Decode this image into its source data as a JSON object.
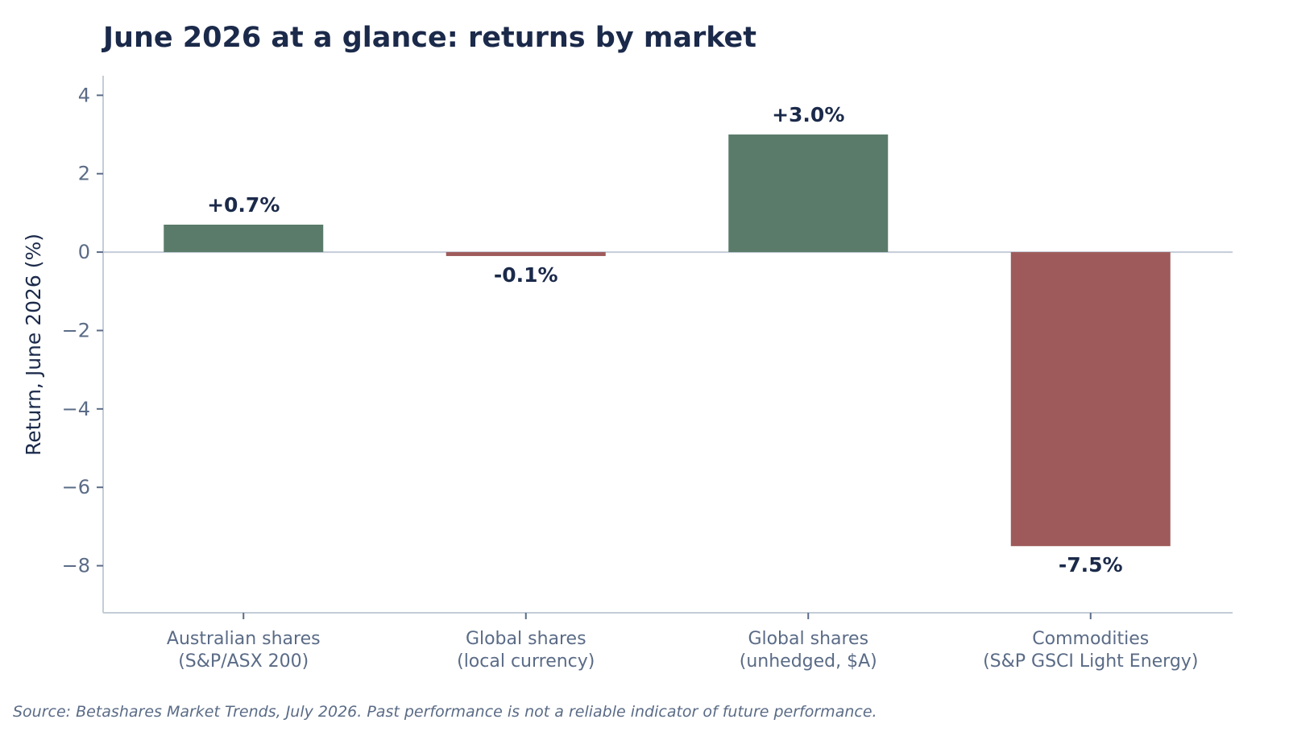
{
  "colors": {
    "title": "#1b2a4a",
    "axis": "#c4ccd8",
    "tick_text": "#5a6b86",
    "label_text": "#1b2a4a",
    "positive_bar": "#5a7b6a",
    "negative_bar": "#9e5a5a",
    "zero_line": "#c4ccd8"
  },
  "chart_data": {
    "type": "bar",
    "title": "June 2026 at a glance: returns by market",
    "xlabel": "",
    "ylabel": "Return, June 2026 (%)",
    "ylim": [
      -9.2,
      4.5
    ],
    "yticks": [
      4,
      2,
      0,
      -2,
      -4,
      -6,
      -8
    ],
    "ytick_labels": [
      "4",
      "2",
      "0",
      "−2",
      "−4",
      "−6",
      "−8"
    ],
    "categories": [
      [
        "Australian shares",
        "(S&P/ASX 200)"
      ],
      [
        "Global shares",
        "(local currency)"
      ],
      [
        "Global shares",
        "(unhedged, $A)"
      ],
      [
        "Commodities",
        "(S&P GSCI Light Energy)"
      ]
    ],
    "values": [
      0.7,
      -0.1,
      3.0,
      -7.5
    ],
    "value_labels": [
      "+0.7%",
      "-0.1%",
      "+3.0%",
      "-7.5%"
    ],
    "grid": false,
    "legend": "none"
  },
  "footer": {
    "source": "Source: Betashares Market Trends, July 2026. Past performance is not a reliable indicator of future performance."
  }
}
